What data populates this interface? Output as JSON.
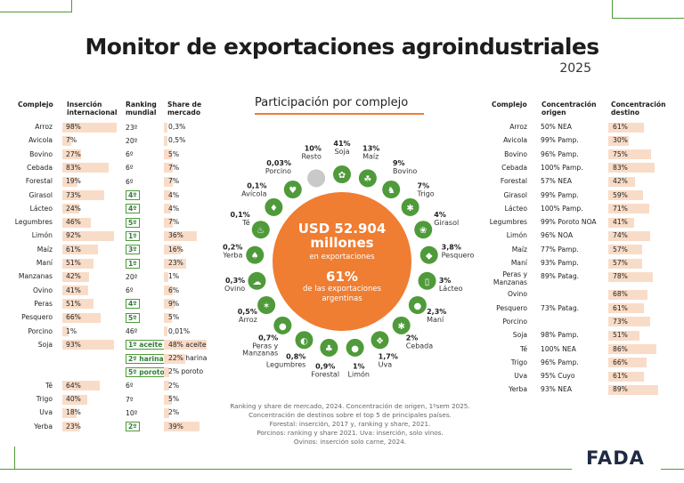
{
  "title": "Monitor de exportaciones agroindustriales",
  "year": "2025",
  "logo": "FADA",
  "left_table": {
    "headers": {
      "complejo": "Complejo",
      "insercion": "Inserción internacional",
      "ranking": "Ranking mundial",
      "share": "Share de mercado"
    },
    "rows": [
      {
        "complejo": "Arroz",
        "insercion": "98%",
        "ins_value": 98,
        "ranking": "23º",
        "ranking_boxed": false,
        "share": "0,3%",
        "share_value": 0.3
      },
      {
        "complejo": "Avicola",
        "insercion": "7%",
        "ins_value": 7,
        "ranking": "20º",
        "ranking_boxed": false,
        "share": "0,5%",
        "share_value": 0.5
      },
      {
        "complejo": "Bovino",
        "insercion": "27%",
        "ins_value": 27,
        "ranking": "6º",
        "ranking_boxed": false,
        "share": "5%",
        "share_value": 5
      },
      {
        "complejo": "Cebada",
        "insercion": "83%",
        "ins_value": 83,
        "ranking": "6º",
        "ranking_boxed": false,
        "share": "7%",
        "share_value": 7
      },
      {
        "complejo": "Forestal",
        "insercion": "19%",
        "ins_value": 19,
        "ranking": "6º",
        "ranking_boxed": false,
        "share": "7%",
        "share_value": 7
      },
      {
        "complejo": "Girasol",
        "insercion": "73%",
        "ins_value": 73,
        "ranking": "4º",
        "ranking_boxed": true,
        "share": "4%",
        "share_value": 4
      },
      {
        "complejo": "Lácteo",
        "insercion": "24%",
        "ins_value": 24,
        "ranking": "4º",
        "ranking_boxed": true,
        "share": "4%",
        "share_value": 4
      },
      {
        "complejo": "Legumbres",
        "insercion": "46%",
        "ins_value": 46,
        "ranking": "5º",
        "ranking_boxed": true,
        "share": "7%",
        "share_value": 7
      },
      {
        "complejo": "Limón",
        "insercion": "92%",
        "ins_value": 92,
        "ranking": "1º",
        "ranking_boxed": true,
        "share": "36%",
        "share_value": 36
      },
      {
        "complejo": "Maíz",
        "insercion": "61%",
        "ins_value": 61,
        "ranking": "3º",
        "ranking_boxed": true,
        "share": "16%",
        "share_value": 16
      },
      {
        "complejo": "Maní",
        "insercion": "51%",
        "ins_value": 51,
        "ranking": "1º",
        "ranking_boxed": true,
        "share": "23%",
        "share_value": 23
      },
      {
        "complejo": "Manzanas",
        "insercion": "42%",
        "ins_value": 42,
        "ranking": "20º",
        "ranking_boxed": false,
        "share": "1%",
        "share_value": 1
      },
      {
        "complejo": "Ovino",
        "insercion": "41%",
        "ins_value": 41,
        "ranking": "6º",
        "ranking_boxed": false,
        "share": "6%",
        "share_value": 6
      },
      {
        "complejo": "Peras",
        "insercion": "51%",
        "ins_value": 51,
        "ranking": "4º",
        "ranking_boxed": true,
        "share": "9%",
        "share_value": 9
      },
      {
        "complejo": "Pesquero",
        "insercion": "66%",
        "ins_value": 66,
        "ranking": "5º",
        "ranking_boxed": true,
        "share": "5%",
        "share_value": 5
      },
      {
        "complejo": "Porcino",
        "insercion": "1%",
        "ins_value": 1,
        "ranking": "46º",
        "ranking_boxed": false,
        "share": "0,01%",
        "share_value": 0.01
      },
      {
        "complejo": "Soja",
        "insercion": "93%",
        "ins_value": 93,
        "ranking": "1º aceite",
        "ranking_boxed": true,
        "share": "48% aceite",
        "share_value": 48
      },
      {
        "complejo": "",
        "insercion": "",
        "ins_value": 0,
        "ranking": "2º harina",
        "ranking_boxed": true,
        "share": "22% harina",
        "share_value": 22
      },
      {
        "complejo": "",
        "insercion": "",
        "ins_value": 0,
        "ranking": "5º poroto",
        "ranking_boxed": true,
        "share": "2% poroto",
        "share_value": 2
      },
      {
        "complejo": "Té",
        "insercion": "64%",
        "ins_value": 64,
        "ranking": "6º",
        "ranking_boxed": false,
        "share": "2%",
        "share_value": 2
      },
      {
        "complejo": "Trigo",
        "insercion": "40%",
        "ins_value": 40,
        "ranking": "7º",
        "ranking_boxed": false,
        "share": "5%",
        "share_value": 5
      },
      {
        "complejo": "Uva",
        "insercion": "18%",
        "ins_value": 18,
        "ranking": "10º",
        "ranking_boxed": false,
        "share": "2%",
        "share_value": 2
      },
      {
        "complejo": "Yerba",
        "insercion": "23%",
        "ins_value": 23,
        "ranking": "2º",
        "ranking_boxed": true,
        "share": "39%",
        "share_value": 39
      }
    ]
  },
  "right_table": {
    "headers": {
      "complejo": "Complejo",
      "origen": "Concentración origen",
      "destino": "Concentración destino"
    },
    "rows": [
      {
        "complejo": "Arroz",
        "origen": "50% NEA",
        "destino": "61%",
        "dest_value": 61
      },
      {
        "complejo": "Avicola",
        "origen": "99% Pamp.",
        "destino": "30%",
        "dest_value": 30
      },
      {
        "complejo": "Bovino",
        "origen": "96% Pamp.",
        "destino": "75%",
        "dest_value": 75
      },
      {
        "complejo": "Cebada",
        "origen": "100% Pamp.",
        "destino": "83%",
        "dest_value": 83
      },
      {
        "complejo": "Forestal",
        "origen": "57% NEA",
        "destino": "42%",
        "dest_value": 42
      },
      {
        "complejo": "Girasol",
        "origen": "99% Pamp.",
        "destino": "59%",
        "dest_value": 59
      },
      {
        "complejo": "Lácteo",
        "origen": "100% Pamp.",
        "destino": "71%",
        "dest_value": 71
      },
      {
        "complejo": "Legumbres",
        "origen": "99% Poroto NOA",
        "destino": "41%",
        "dest_value": 41
      },
      {
        "complejo": "Limón",
        "origen": "96% NOA",
        "destino": "74%",
        "dest_value": 74
      },
      {
        "complejo": "Maíz",
        "origen": "77% Pamp.",
        "destino": "57%",
        "dest_value": 57
      },
      {
        "complejo": "Maní",
        "origen": "93% Pamp.",
        "destino": "57%",
        "dest_value": 57
      },
      {
        "complejo": "Peras y Manzanas",
        "origen": "89% Patag.",
        "destino": "78%",
        "dest_value": 78
      },
      {
        "complejo": "Ovino",
        "origen": "",
        "destino": "68%",
        "dest_value": 68
      },
      {
        "complejo": "Pesquero",
        "origen": "73% Patag.",
        "destino": "61%",
        "dest_value": 61
      },
      {
        "complejo": "Porcino",
        "origen": "",
        "destino": "73%",
        "dest_value": 73
      },
      {
        "complejo": "Soja",
        "origen": "98% Pamp.",
        "destino": "51%",
        "dest_value": 51
      },
      {
        "complejo": "Té",
        "origen": "100% NEA",
        "destino": "86%",
        "dest_value": 86
      },
      {
        "complejo": "Trigo",
        "origen": "96% Pamp.",
        "destino": "66%",
        "dest_value": 66
      },
      {
        "complejo": "Uva",
        "origen": "95% Cuyo",
        "destino": "61%",
        "dest_value": 61
      },
      {
        "complejo": "Yerba",
        "origen": "93% NEA",
        "destino": "89%",
        "dest_value": 89
      }
    ]
  },
  "center": {
    "title": "Participación por complejo",
    "total_value": "USD 52.904",
    "total_unit": "millones",
    "total_caption": "en exportaciones",
    "pct_value": "61%",
    "pct_caption_1": "de las exportaciones",
    "pct_caption_2": "argentinas"
  },
  "chart_data": {
    "type": "pie",
    "title": "Participación por complejo",
    "slices": [
      {
        "label": "Soja",
        "value": 41,
        "display": "41%",
        "icon": "soybean-icon"
      },
      {
        "label": "Maíz",
        "value": 13,
        "display": "13%",
        "icon": "corn-icon"
      },
      {
        "label": "Bovino",
        "value": 9,
        "display": "9%",
        "icon": "cow-icon"
      },
      {
        "label": "Trigo",
        "value": 7,
        "display": "7%",
        "icon": "wheat-icon"
      },
      {
        "label": "Girasol",
        "value": 4,
        "display": "4%",
        "icon": "sunflower-icon"
      },
      {
        "label": "Pesquero",
        "value": 3.8,
        "display": "3,8%",
        "icon": "fish-icon"
      },
      {
        "label": "Lácteo",
        "value": 3,
        "display": "3%",
        "icon": "milk-icon"
      },
      {
        "label": "Maní",
        "value": 2.3,
        "display": "2,3%",
        "icon": "peanut-icon"
      },
      {
        "label": "Cebada",
        "value": 2,
        "display": "2%",
        "icon": "barley-icon"
      },
      {
        "label": "Uva",
        "value": 1.7,
        "display": "1,7%",
        "icon": "grape-icon"
      },
      {
        "label": "Limón",
        "value": 1,
        "display": "1%",
        "icon": "lemon-icon"
      },
      {
        "label": "Forestal",
        "value": 0.9,
        "display": "0,9%",
        "icon": "tree-icon"
      },
      {
        "label": "Legumbres",
        "value": 0.8,
        "display": "0,8%",
        "icon": "legume-icon"
      },
      {
        "label": "Peras y Manzanas",
        "value": 0.7,
        "display": "0,7%",
        "icon": "apple-icon"
      },
      {
        "label": "Arroz",
        "value": 0.5,
        "display": "0,5%",
        "icon": "rice-icon"
      },
      {
        "label": "Ovino",
        "value": 0.3,
        "display": "0,3%",
        "icon": "sheep-icon"
      },
      {
        "label": "Yerba",
        "value": 0.2,
        "display": "0,2%",
        "icon": "yerba-icon"
      },
      {
        "label": "Té",
        "value": 0.1,
        "display": "0,1%",
        "icon": "tea-icon"
      },
      {
        "label": "Avícola",
        "value": 0.1,
        "display": "0,1%",
        "icon": "chicken-icon"
      },
      {
        "label": "Porcino",
        "value": 0.03,
        "display": "0,03%",
        "icon": "pig-icon"
      },
      {
        "label": "Resto",
        "value": 10,
        "display": "10%",
        "icon": "none"
      }
    ]
  },
  "colors": {
    "green": "#4f9a3a",
    "orange": "#ef7d32",
    "bar": "#f9dcc8",
    "grey": "#c9c9c9"
  },
  "footnote": [
    "Ranking y share de mercado, 2024. Concentración de origen, 1ºsem 2025.",
    "Concentración de destinos sobre el top 5 de principales países.",
    "Forestal: inserción, 2017 y, ranking y share, 2021.",
    "Porcinos: ranking y share 2021. Uva: inserción, solo vinos.",
    "Ovinos: inserción solo carne, 2024."
  ]
}
